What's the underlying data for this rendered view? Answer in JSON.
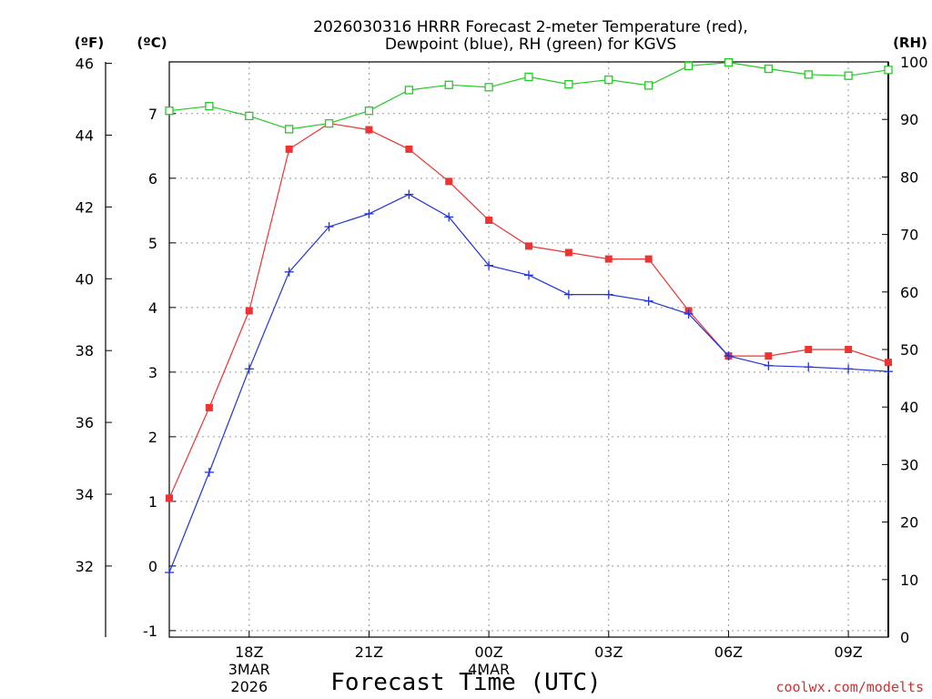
{
  "chart_data": {
    "type": "line",
    "title_line1": "2026030316 HRRR Forecast 2-meter Temperature (red),",
    "title_line2": "Dewpoint (blue), RH (green) for KGVS",
    "xlabel": "Forecast Time (UTC)",
    "watermark": "coolwx.com/modelts",
    "units": {
      "fahrenheit": "(ºF)",
      "celsius": "(ºC)",
      "rh": "(RH)"
    },
    "x_hours": [
      16,
      17,
      18,
      19,
      20,
      21,
      22,
      23,
      24,
      25,
      26,
      27,
      28,
      29,
      30,
      31,
      32,
      33,
      34
    ],
    "xlim": [
      16,
      34
    ],
    "x_ticks": [
      {
        "hour": 18,
        "label": "18Z",
        "sub1": "3MAR",
        "sub2": "2026"
      },
      {
        "hour": 21,
        "label": "21Z",
        "sub1": "",
        "sub2": ""
      },
      {
        "hour": 24,
        "label": "00Z",
        "sub1": "4MAR",
        "sub2": ""
      },
      {
        "hour": 27,
        "label": "03Z",
        "sub1": "",
        "sub2": ""
      },
      {
        "hour": 30,
        "label": "06Z",
        "sub1": "",
        "sub2": ""
      },
      {
        "hour": 33,
        "label": "09Z",
        "sub1": "",
        "sub2": ""
      }
    ],
    "celsius_axis": {
      "min": -1.1,
      "max": 7.8,
      "ticks": [
        -1,
        0,
        1,
        2,
        3,
        4,
        5,
        6,
        7
      ]
    },
    "fahrenheit_axis": {
      "min": 30.02,
      "max": 46.04,
      "ticks": [
        32,
        34,
        36,
        38,
        40,
        42,
        44,
        46
      ]
    },
    "rh_axis": {
      "min": 0,
      "max": 100,
      "ticks": [
        0,
        10,
        20,
        30,
        40,
        50,
        60,
        70,
        80,
        90,
        100
      ]
    },
    "series": [
      {
        "name": "Temperature",
        "color": "#ee3333",
        "marker": "filled-square",
        "axis": "celsius",
        "values": [
          1.05,
          2.45,
          3.95,
          6.45,
          6.85,
          6.75,
          6.45,
          5.95,
          5.35,
          4.95,
          4.85,
          4.75,
          4.75,
          3.95,
          3.25,
          3.25,
          3.35,
          3.35,
          3.15
        ]
      },
      {
        "name": "Dewpoint",
        "color": "#2233dd",
        "marker": "plus",
        "axis": "celsius",
        "values": [
          -0.1,
          1.45,
          3.05,
          4.55,
          5.25,
          5.45,
          5.75,
          5.4,
          4.65,
          4.5,
          4.2,
          4.2,
          4.1,
          3.9,
          3.25,
          3.1,
          3.08,
          3.05,
          3.01
        ]
      },
      {
        "name": "RH",
        "color": "#22cc22",
        "marker": "open-square",
        "axis": "rh",
        "values": [
          91.5,
          92.3,
          90.6,
          88.3,
          89.3,
          91.5,
          95.1,
          96.0,
          95.6,
          97.4,
          96.1,
          96.9,
          95.9,
          99.3,
          99.9,
          98.8,
          97.8,
          97.6,
          98.6
        ]
      }
    ],
    "grid": true
  }
}
